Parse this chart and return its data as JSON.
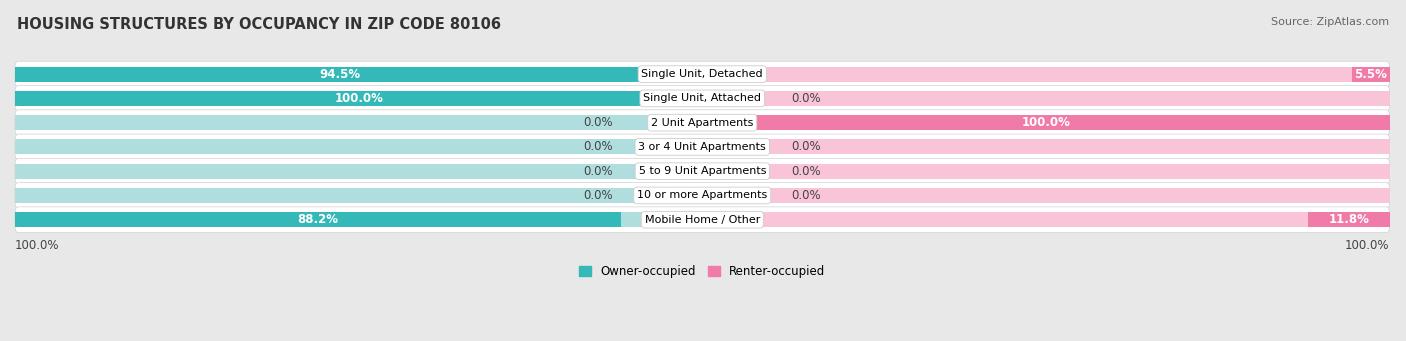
{
  "title": "HOUSING STRUCTURES BY OCCUPANCY IN ZIP CODE 80106",
  "source": "Source: ZipAtlas.com",
  "categories": [
    "Single Unit, Detached",
    "Single Unit, Attached",
    "2 Unit Apartments",
    "3 or 4 Unit Apartments",
    "5 to 9 Unit Apartments",
    "10 or more Apartments",
    "Mobile Home / Other"
  ],
  "owner_pct": [
    94.5,
    100.0,
    0.0,
    0.0,
    0.0,
    0.0,
    88.2
  ],
  "renter_pct": [
    5.5,
    0.0,
    100.0,
    0.0,
    0.0,
    0.0,
    11.8
  ],
  "owner_color": "#35b8b8",
  "renter_color": "#f07aa8",
  "owner_placeholder_color": "#b0dede",
  "renter_placeholder_color": "#f9c4d8",
  "bar_height": 0.62,
  "background_color": "#e8e8e8",
  "row_bg_color": "#ffffff",
  "row_bg_edge": "#d0d0d0",
  "title_fontsize": 10.5,
  "source_fontsize": 8,
  "label_fontsize": 8.5,
  "category_fontsize": 8,
  "axis_label_fontsize": 8.5,
  "legend_fontsize": 8.5,
  "left_axis_label": "100.0%",
  "right_axis_label": "100.0%",
  "placeholder_pct": 6.0
}
